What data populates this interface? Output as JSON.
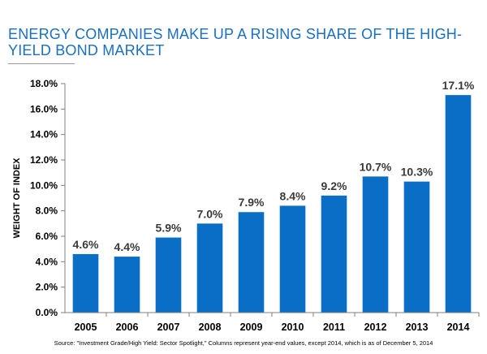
{
  "chart_data": {
    "type": "bar",
    "title": "ENERGY COMPANIES MAKE UP A RISING SHARE OF THE HIGH-YIELD BOND MARKET",
    "xlabel": "",
    "ylabel": "WEIGHT OF INDEX",
    "categories": [
      "2005",
      "2006",
      "2007",
      "2008",
      "2009",
      "2010",
      "2011",
      "2012",
      "2013",
      "2014"
    ],
    "values": [
      4.6,
      4.4,
      5.9,
      7.0,
      7.9,
      8.4,
      9.2,
      10.7,
      10.3,
      17.1
    ],
    "value_labels": [
      "4.6%",
      "4.4%",
      "5.9%",
      "7.0%",
      "7.9%",
      "8.4%",
      "9.2%",
      "10.7%",
      "10.3%",
      "17.1%"
    ],
    "ylim": [
      0,
      18
    ],
    "yticks": [
      0,
      2,
      4,
      6,
      8,
      10,
      12,
      14,
      16,
      18
    ],
    "ytick_labels": [
      "0.0%",
      "2.0%",
      "4.0%",
      "6.0%",
      "8.0%",
      "10.0%",
      "12.0%",
      "14.0%",
      "16.0%",
      "18.0%"
    ],
    "grid": false,
    "bar_color": "#0a6ec6",
    "title_color": "#1a6fc0"
  },
  "source_note": "Source: \"Investment Grade/High Yield: Sector Spotlight,\" Columns represent year-end values, except 2014, which is as of December 5, 2014"
}
